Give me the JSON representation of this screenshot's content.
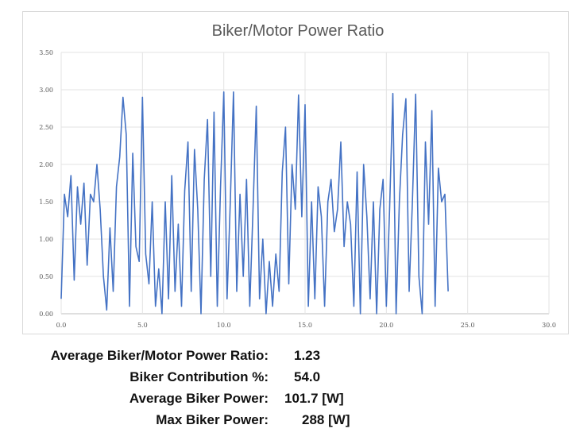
{
  "chart_data": {
    "type": "line",
    "title": "Biker/Motor Power Ratio",
    "xlabel": "",
    "ylabel": "",
    "xlim": [
      0,
      30
    ],
    "ylim": [
      0,
      3.5
    ],
    "x_ticks": [
      "0.0",
      "5.0",
      "10.0",
      "15.0",
      "20.0",
      "25.0",
      "30.0"
    ],
    "y_ticks": [
      "0.00",
      "0.50",
      "1.00",
      "1.50",
      "2.00",
      "2.50",
      "3.00",
      "3.50"
    ],
    "grid": true,
    "line_color": "#4472c4",
    "x_start": 0,
    "x_step": 0.2,
    "series": [
      {
        "name": "Biker/Motor Power Ratio",
        "values": [
          0.2,
          1.6,
          1.3,
          1.85,
          0.45,
          1.7,
          1.2,
          1.75,
          0.65,
          1.6,
          1.5,
          2.0,
          1.4,
          0.5,
          0.05,
          1.15,
          0.3,
          1.7,
          2.1,
          2.9,
          2.4,
          0.1,
          2.15,
          0.9,
          0.7,
          2.9,
          0.8,
          0.4,
          1.5,
          0.1,
          0.6,
          0.0,
          1.5,
          0.2,
          1.85,
          0.3,
          1.2,
          0.1,
          1.65,
          2.3,
          0.3,
          2.2,
          1.4,
          0.0,
          1.8,
          2.6,
          0.5,
          2.7,
          0.1,
          1.7,
          2.97,
          0.2,
          1.5,
          2.97,
          0.3,
          1.6,
          0.5,
          1.8,
          0.1,
          1.4,
          2.78,
          0.2,
          1.0,
          0.0,
          0.7,
          0.1,
          0.8,
          0.3,
          1.9,
          2.5,
          0.4,
          2.0,
          1.4,
          2.93,
          1.3,
          2.8,
          0.1,
          1.5,
          0.2,
          1.7,
          1.3,
          0.1,
          1.5,
          1.8,
          1.1,
          1.4,
          2.3,
          0.9,
          1.5,
          1.2,
          0.1,
          1.9,
          0.0,
          2.0,
          1.3,
          0.2,
          1.5,
          0.0,
          1.4,
          1.8,
          0.1,
          1.4,
          2.95,
          0.0,
          1.5,
          2.4,
          2.88,
          0.3,
          1.5,
          2.94,
          0.5,
          0.0,
          2.3,
          1.2,
          2.72,
          0.1,
          1.95,
          1.5,
          1.6,
          0.3
        ]
      }
    ]
  },
  "stats": [
    {
      "label": "Average Biker/Motor Power Ratio:",
      "value": "1.23",
      "unit": ""
    },
    {
      "label": "Biker Contribution %:",
      "value": "54.0",
      "unit": ""
    },
    {
      "label": "Average Biker Power:",
      "value": "101.7",
      "unit": "[W]"
    },
    {
      "label": "Max Biker Power:",
      "value": "288",
      "unit": "[W]"
    }
  ]
}
